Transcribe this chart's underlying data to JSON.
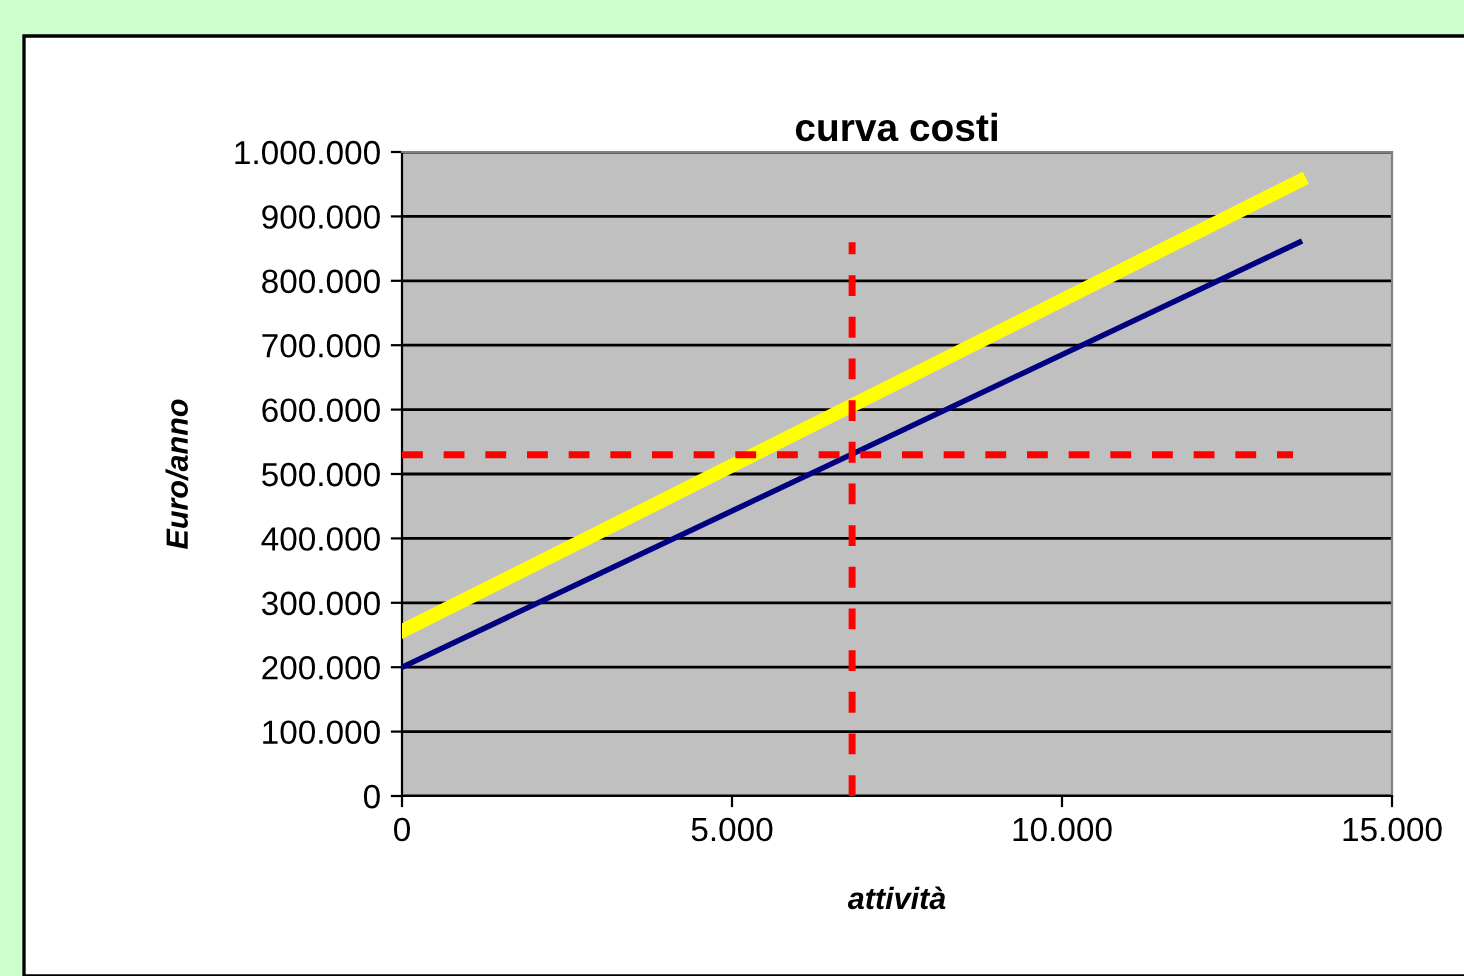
{
  "chart_data": {
    "type": "line",
    "title": "curva costi",
    "xlabel": "attività",
    "ylabel": "Euro/anno",
    "series": [
      {
        "color": "#000080",
        "x": [
          0,
          13600
        ],
        "values": [
          200000,
          860000
        ]
      },
      {
        "color": "#ffff00",
        "x": [
          0,
          13600
        ],
        "values": [
          256000,
          955000
        ]
      },
      {
        "color": "#ff0000",
        "line_style": "dashed",
        "x": [
          0,
          13500
        ],
        "values": [
          530000,
          530000
        ]
      },
      {
        "color": "#ff0000",
        "line_style": "dashed",
        "x": [
          6820,
          6820
        ],
        "values": [
          0,
          860000
        ]
      }
    ],
    "xlim": [
      0,
      15000
    ],
    "ylim": [
      0,
      1000000
    ],
    "xticks": [
      0,
      {
        "value": 5000,
        "label": "5.000"
      },
      {
        "value": 10000,
        "label": "10.000"
      },
      {
        "value": 15000,
        "label": "15.000"
      }
    ],
    "yticks": [
      0,
      {
        "value": 100000,
        "label": "100.000"
      },
      {
        "value": 200000,
        "label": "200.000"
      },
      {
        "value": 300000,
        "label": "300.000"
      },
      {
        "value": 400000,
        "label": "400.000"
      },
      {
        "value": 500000,
        "label": "500.000"
      },
      {
        "value": 600000,
        "label": "600.000"
      },
      {
        "value": 700000,
        "label": "700.000"
      },
      {
        "value": 800000,
        "label": "800.000"
      },
      {
        "value": 900000,
        "label": "900.000"
      },
      {
        "value": 1000000,
        "label": "1.000.000"
      }
    ],
    "grid": "y"
  }
}
